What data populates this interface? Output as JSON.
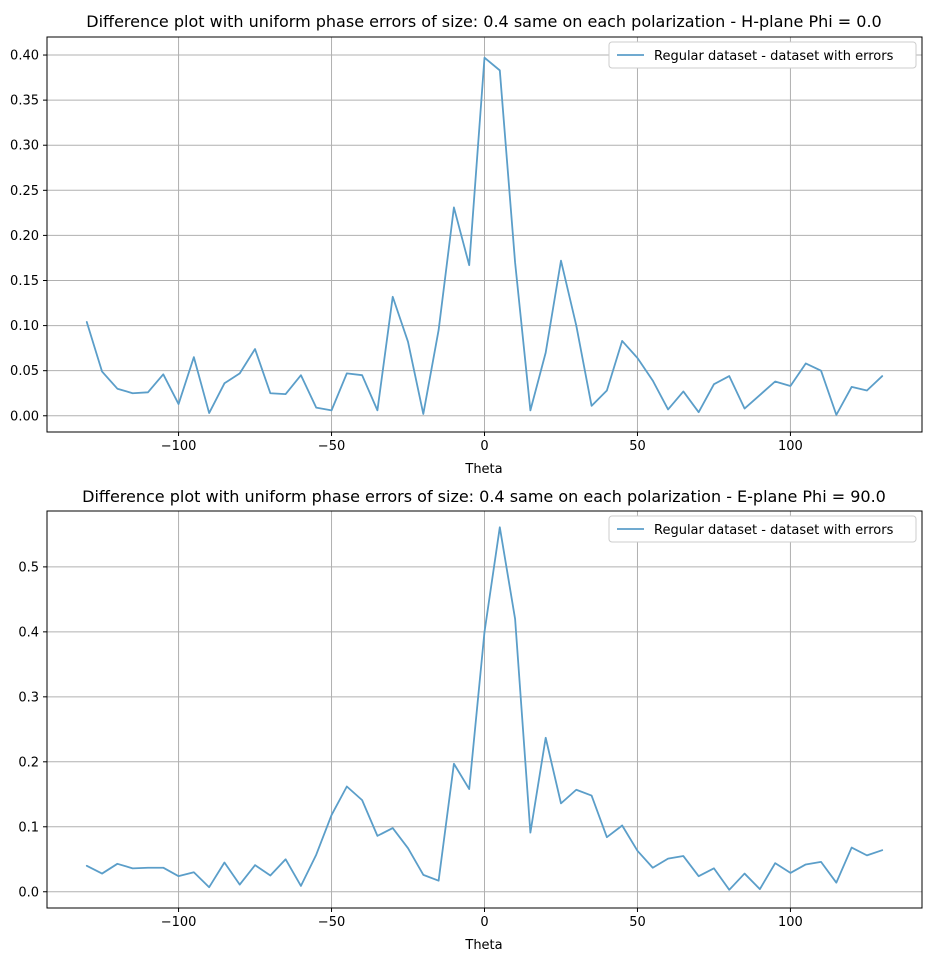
{
  "colors": {
    "series": "#5b9ec9",
    "grid": "#b0b0b0"
  },
  "chart_data": [
    {
      "type": "line",
      "title": "Difference plot with uniform phase errors of size: 0.4 same on each polarization - H-plane Phi = 0.0",
      "xlabel": "Theta",
      "ylabel": "",
      "grid": true,
      "legend_placement": "top-right",
      "xlim": [
        -143,
        143
      ],
      "ylim": [
        -0.018,
        0.42
      ],
      "xticks": [
        -100,
        -50,
        0,
        50,
        100
      ],
      "xtick_labels": [
        "−100",
        "−50",
        "0",
        "50",
        "100"
      ],
      "yticks": [
        0.0,
        0.05,
        0.1,
        0.15,
        0.2,
        0.25,
        0.3,
        0.35,
        0.4
      ],
      "ytick_labels": [
        "0.00",
        "0.05",
        "0.10",
        "0.15",
        "0.20",
        "0.25",
        "0.30",
        "0.35",
        "0.40"
      ],
      "series": [
        {
          "name": "Regular dataset - dataset with errors",
          "x": [
            -130,
            -125,
            -120,
            -115,
            -110,
            -105,
            -100,
            -95,
            -90,
            -85,
            -80,
            -75,
            -70,
            -65,
            -60,
            -55,
            -50,
            -45,
            -40,
            -35,
            -30,
            -25,
            -20,
            -15,
            -10,
            -5,
            0,
            5,
            10,
            15,
            20,
            25,
            30,
            35,
            40,
            45,
            50,
            55,
            60,
            65,
            70,
            75,
            80,
            85,
            90,
            95,
            100,
            105,
            110,
            115,
            120,
            125,
            130
          ],
          "y": [
            0.104,
            0.049,
            0.03,
            0.025,
            0.026,
            0.046,
            0.013,
            0.065,
            0.003,
            0.036,
            0.047,
            0.074,
            0.025,
            0.024,
            0.045,
            0.009,
            0.006,
            0.047,
            0.045,
            0.006,
            0.132,
            0.082,
            0.002,
            0.095,
            0.231,
            0.167,
            0.397,
            0.383,
            0.17,
            0.006,
            0.07,
            0.172,
            0.1,
            0.011,
            0.028,
            0.083,
            0.064,
            0.039,
            0.007,
            0.027,
            0.004,
            0.035,
            0.044,
            0.008,
            0.023,
            0.038,
            0.033,
            0.058,
            0.05,
            0.001,
            0.032,
            0.028,
            0.044
          ]
        }
      ]
    },
    {
      "type": "line",
      "title": "Difference plot with uniform phase errors of size: 0.4 same on each polarization - E-plane Phi = 90.0",
      "xlabel": "Theta",
      "ylabel": "",
      "grid": true,
      "legend_placement": "top-right",
      "xlim": [
        -143,
        143
      ],
      "ylim": [
        -0.025,
        0.586
      ],
      "xticks": [
        -100,
        -50,
        0,
        50,
        100
      ],
      "xtick_labels": [
        "−100",
        "−50",
        "0",
        "50",
        "100"
      ],
      "yticks": [
        0.0,
        0.1,
        0.2,
        0.3,
        0.4,
        0.5
      ],
      "ytick_labels": [
        "0.0",
        "0.1",
        "0.2",
        "0.3",
        "0.4",
        "0.5"
      ],
      "series": [
        {
          "name": "Regular dataset - dataset with errors",
          "x": [
            -130,
            -125,
            -120,
            -115,
            -110,
            -105,
            -100,
            -95,
            -90,
            -85,
            -80,
            -75,
            -70,
            -65,
            -60,
            -55,
            -50,
            -45,
            -40,
            -35,
            -30,
            -25,
            -20,
            -15,
            -10,
            -5,
            0,
            5,
            10,
            15,
            20,
            25,
            30,
            35,
            40,
            45,
            50,
            55,
            60,
            65,
            70,
            75,
            80,
            85,
            90,
            95,
            100,
            105,
            110,
            115,
            120,
            125,
            130
          ],
          "y": [
            0.04,
            0.028,
            0.043,
            0.036,
            0.037,
            0.037,
            0.024,
            0.03,
            0.007,
            0.045,
            0.011,
            0.041,
            0.025,
            0.05,
            0.009,
            0.057,
            0.118,
            0.162,
            0.141,
            0.086,
            0.098,
            0.067,
            0.026,
            0.017,
            0.197,
            0.158,
            0.4,
            0.561,
            0.42,
            0.091,
            0.237,
            0.136,
            0.157,
            0.148,
            0.084,
            0.102,
            0.063,
            0.037,
            0.051,
            0.055,
            0.024,
            0.036,
            0.003,
            0.028,
            0.004,
            0.044,
            0.029,
            0.042,
            0.046,
            0.014,
            0.068,
            0.056,
            0.064
          ]
        }
      ]
    }
  ]
}
